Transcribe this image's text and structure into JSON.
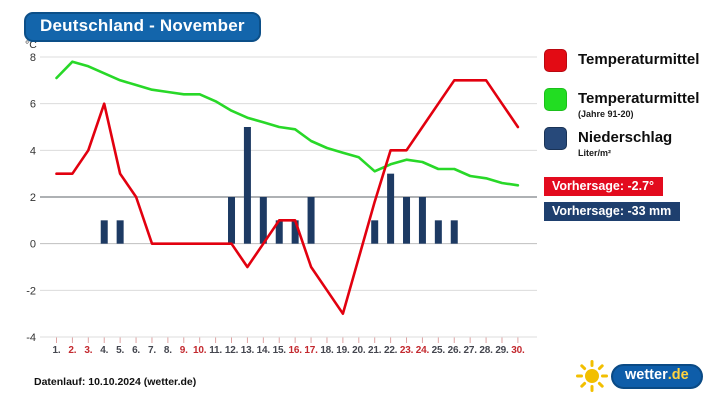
{
  "header": {
    "title": "Deutschland - November"
  },
  "chart_data": {
    "type": "line+bar",
    "title": "Deutschland - November",
    "ylabel": "°C",
    "ylim": [
      -4,
      8
    ],
    "yticks": [
      8,
      6,
      4,
      2,
      0,
      -2,
      -4
    ],
    "grid": true,
    "legend_position": "right",
    "days": [
      1,
      2,
      3,
      4,
      5,
      6,
      7,
      8,
      9,
      10,
      11,
      12,
      13,
      14,
      15,
      16,
      17,
      18,
      19,
      20,
      21,
      22,
      23,
      24,
      25,
      26,
      27,
      28,
      29,
      30
    ],
    "weekend_days": [
      2,
      3,
      9,
      10,
      16,
      17,
      23,
      24,
      30
    ],
    "series": [
      {
        "name": "Temperaturmittel",
        "type": "line",
        "color": "#e2000f",
        "values": [
          3.0,
          3.0,
          4.0,
          6.0,
          3.0,
          2.0,
          0.0,
          0.0,
          0.0,
          0.0,
          0.0,
          0.0,
          -1.0,
          0.0,
          1.0,
          1.0,
          -1.0,
          -2.0,
          -3.0,
          -0.6,
          1.8,
          4.0,
          4.0,
          5.0,
          6.0,
          7.0,
          7.0,
          7.0,
          6.0,
          5.0
        ]
      },
      {
        "name": "Temperaturmittel (Jahre 91-20)",
        "type": "line",
        "color": "#28d828",
        "values": [
          7.1,
          7.8,
          7.6,
          7.3,
          7.0,
          6.8,
          6.6,
          6.5,
          6.4,
          6.4,
          6.1,
          5.7,
          5.4,
          5.2,
          5.0,
          4.9,
          4.4,
          4.1,
          3.9,
          3.7,
          3.1,
          3.4,
          3.6,
          3.5,
          3.2,
          3.2,
          2.9,
          2.8,
          2.6,
          2.5
        ]
      },
      {
        "name": "Niederschlag (Liter/m²)",
        "type": "bar",
        "color": "#1d3a63",
        "values": [
          0,
          0,
          0,
          1,
          1,
          0,
          0,
          0,
          0,
          0,
          0,
          2,
          5,
          2,
          1,
          1,
          2,
          0,
          0,
          0,
          1,
          3,
          2,
          2,
          1,
          1,
          0,
          0,
          0,
          0
        ]
      }
    ]
  },
  "legend": {
    "items": [
      {
        "label": "Temperaturmittel",
        "sublabel": "",
        "color": "#e30b14"
      },
      {
        "label": "Temperaturmittel",
        "sublabel": "(Jahre 91-20)",
        "color": "#22dd22"
      },
      {
        "label": "Niederschlag",
        "sublabel": "Liter/m²",
        "color": "#27497a"
      }
    ]
  },
  "badges": [
    {
      "label": "Vorhersage: -2.7°",
      "color": "#e30b1e"
    },
    {
      "label": "Vorhersage: -33 mm",
      "color": "#1e3f6e"
    }
  ],
  "footer": {
    "text": "Datenlauf: 10.10.2024 (wetter.de)"
  },
  "logo": {
    "name": "wetter",
    "tld": ".de"
  }
}
